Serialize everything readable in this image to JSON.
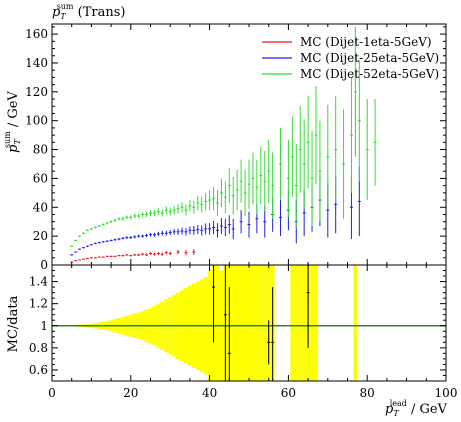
{
  "chart_data": {
    "type": "scatter",
    "title": {
      "base": "p",
      "sup": "sum",
      "sub": "T",
      "rest": " (Trans)"
    },
    "ylabel_main": {
      "base": "p",
      "sup": "sum",
      "sub": "T",
      "rest": " / GeV"
    },
    "ylabel_ratio": "MC/data",
    "xlabel": {
      "base": "p",
      "sup": "lead",
      "sub": "T",
      "rest": " / GeV"
    },
    "xlim": [
      0,
      100
    ],
    "ylim_main": [
      0,
      167
    ],
    "ylim_ratio": [
      0.5,
      1.55
    ],
    "x_ticks": [
      "0",
      "20",
      "40",
      "60",
      "80",
      "100"
    ],
    "y_ticks_main": [
      "0",
      "20",
      "40",
      "60",
      "80",
      "100",
      "120",
      "140",
      "160"
    ],
    "y_ticks_ratio": [
      "0.6",
      "0.8",
      "1",
      "1.2",
      "1.4"
    ],
    "legend_position": "top-right",
    "series": [
      {
        "name": "MC (Dijet-1eta-5GeV)",
        "color": "#e41a1c",
        "x": [
          5,
          6,
          7,
          8,
          9,
          10,
          11,
          12,
          13,
          14,
          15,
          16,
          17,
          18,
          19,
          20,
          21,
          22,
          23,
          24,
          25,
          26,
          27,
          28,
          29,
          30,
          32,
          34,
          36
        ],
        "y": [
          2,
          3,
          3.5,
          4,
          4.5,
          5,
          5,
          5.5,
          5.5,
          6,
          6,
          6,
          6.5,
          6.5,
          7,
          6.5,
          7,
          7,
          7.5,
          7,
          8,
          7.5,
          8,
          7.5,
          8.5,
          8,
          9,
          8.5,
          9
        ],
        "err": [
          0.3,
          0.3,
          0.3,
          0.3,
          0.3,
          0.4,
          0.4,
          0.4,
          0.4,
          0.5,
          0.5,
          0.5,
          0.5,
          0.6,
          0.6,
          0.6,
          0.7,
          0.7,
          0.8,
          0.8,
          0.9,
          1,
          1,
          1.1,
          1.2,
          1.2,
          1.5,
          1.8,
          2
        ]
      },
      {
        "name": "MC (Dijet-25eta-5GeV)",
        "color": "#2020e0",
        "x": [
          5,
          6,
          7,
          8,
          9,
          10,
          11,
          12,
          13,
          14,
          15,
          16,
          17,
          18,
          19,
          20,
          21,
          22,
          23,
          24,
          25,
          26,
          27,
          28,
          29,
          30,
          31,
          32,
          33,
          34,
          35,
          36,
          37,
          38,
          39,
          40,
          41,
          42,
          43,
          44,
          45,
          46,
          48,
          50,
          52,
          54,
          56,
          58,
          60,
          62,
          64,
          66,
          68,
          70,
          72,
          76,
          78
        ],
        "y": [
          7,
          9,
          11,
          12,
          13,
          14,
          15,
          15.5,
          16,
          16.5,
          17,
          17.5,
          18,
          18.5,
          19,
          19,
          19.5,
          20,
          20,
          20.5,
          21,
          21,
          21.5,
          22,
          22,
          22.5,
          23,
          23,
          23.5,
          23,
          24,
          24,
          24.5,
          24,
          25,
          25,
          26,
          24,
          27,
          26,
          28,
          25,
          30,
          28,
          32,
          30,
          35,
          33,
          38,
          30,
          36,
          40,
          45,
          38,
          42,
          40,
          44
        ],
        "err": [
          0.4,
          0.4,
          0.4,
          0.4,
          0.5,
          0.5,
          0.5,
          0.6,
          0.6,
          0.6,
          0.7,
          0.7,
          0.8,
          0.8,
          0.9,
          0.9,
          1,
          1,
          1.1,
          1.2,
          1.3,
          1.4,
          1.5,
          1.6,
          1.7,
          1.8,
          2,
          2.2,
          2.4,
          2.6,
          2.8,
          3,
          3.2,
          3.5,
          3.8,
          4,
          4.5,
          5,
          5.5,
          6,
          6.5,
          7,
          8,
          9,
          10,
          11,
          12,
          13,
          14,
          15,
          16,
          17,
          18,
          19,
          20,
          22,
          24
        ]
      },
      {
        "name": "MC (Dijet-52eta-5GeV)",
        "color": "#33dd33",
        "x": [
          5,
          6,
          7,
          8,
          9,
          10,
          11,
          12,
          13,
          14,
          15,
          16,
          17,
          18,
          19,
          20,
          21,
          22,
          23,
          24,
          25,
          26,
          27,
          28,
          29,
          30,
          31,
          32,
          33,
          34,
          35,
          36,
          37,
          38,
          39,
          40,
          41,
          42,
          43,
          44,
          45,
          46,
          47,
          48,
          49,
          50,
          51,
          52,
          53,
          54,
          55,
          56,
          58,
          60,
          61,
          62,
          63,
          64,
          65,
          66,
          67,
          68,
          70,
          72,
          74,
          76,
          77,
          78,
          80,
          82
        ],
        "y": [
          13,
          17,
          20,
          22,
          24,
          25,
          26,
          27,
          28,
          29,
          30,
          31,
          32,
          32,
          33,
          33,
          34,
          34,
          35,
          35,
          36,
          36,
          37,
          36,
          38,
          37,
          38,
          39,
          40,
          38,
          41,
          40,
          43,
          42,
          44,
          45,
          46,
          43,
          50,
          47,
          55,
          48,
          52,
          58,
          50,
          56,
          60,
          54,
          62,
          58,
          65,
          55,
          70,
          60,
          75,
          55,
          80,
          70,
          85,
          60,
          90,
          65,
          75,
          80,
          70,
          90,
          120,
          100,
          80,
          85
        ],
        "err": [
          0.5,
          0.5,
          0.5,
          0.6,
          0.6,
          0.7,
          0.7,
          0.8,
          0.8,
          0.9,
          0.9,
          1,
          1.1,
          1.2,
          1.3,
          1.4,
          1.5,
          1.6,
          1.7,
          1.8,
          2,
          2.1,
          2.2,
          2.4,
          2.6,
          2.8,
          3,
          3.2,
          3.5,
          3.8,
          4,
          4.5,
          5,
          5.5,
          6,
          7,
          8,
          9,
          10,
          11,
          12,
          13,
          14,
          15,
          16,
          17,
          18,
          19,
          20,
          21,
          22,
          23,
          25,
          27,
          28,
          29,
          30,
          31,
          32,
          33,
          34,
          35,
          36,
          37,
          38,
          40,
          45,
          42,
          35,
          30
        ]
      }
    ],
    "ratio_band": {
      "color": "#ffff00",
      "x": [
        5,
        6,
        7,
        8,
        9,
        10,
        11,
        12,
        13,
        14,
        15,
        16,
        17,
        18,
        19,
        20,
        21,
        22,
        23,
        24,
        25,
        26,
        27,
        28,
        29,
        30,
        31,
        32,
        33,
        34,
        35,
        36,
        37,
        38,
        39,
        40,
        41,
        42,
        43,
        44,
        45,
        46,
        47,
        48,
        49,
        50,
        51,
        52,
        53,
        54,
        55,
        56,
        61,
        62,
        63,
        64,
        65,
        66,
        67,
        77
      ],
      "half_width": [
        0.005,
        0.008,
        0.01,
        0.012,
        0.015,
        0.02,
        0.025,
        0.03,
        0.035,
        0.04,
        0.05,
        0.06,
        0.07,
        0.08,
        0.09,
        0.1,
        0.11,
        0.12,
        0.13,
        0.15,
        0.16,
        0.18,
        0.2,
        0.22,
        0.24,
        0.26,
        0.28,
        0.3,
        0.32,
        0.34,
        0.36,
        0.38,
        0.4,
        0.42,
        0.44,
        0.5,
        0.55,
        0.6,
        0.5,
        0.6,
        0.6,
        0.6,
        0.6,
        0.6,
        0.6,
        0.6,
        0.6,
        0.6,
        0.6,
        0.6,
        0.6,
        0.6,
        0.6,
        0.6,
        0.6,
        0.6,
        0.6,
        0.6,
        0.6,
        0.6
      ]
    },
    "ratio_points": [
      {
        "x": 41,
        "y": 1.35,
        "err": 0.5
      },
      {
        "x": 44,
        "y": 1.1,
        "err": 0.6
      },
      {
        "x": 45,
        "y": 0.75,
        "err": 0.6
      },
      {
        "x": 55,
        "y": 0.85,
        "err": 0.2
      },
      {
        "x": 56,
        "y": 0.85,
        "err": 0.5
      },
      {
        "x": 65,
        "y": 1.3,
        "err": 0.5
      }
    ],
    "ratio_reference": {
      "y": 1,
      "color": "#228b22"
    }
  }
}
